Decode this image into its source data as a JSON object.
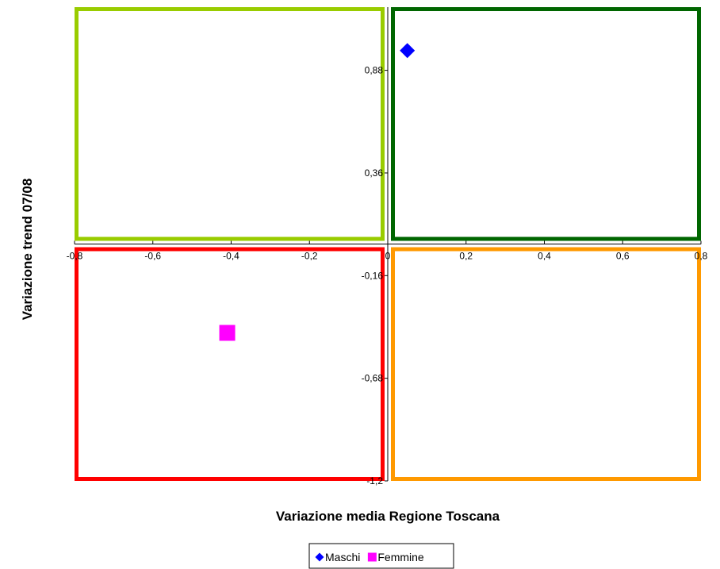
{
  "chart_data": {
    "type": "scatter",
    "xlabel": "Variazione media Regione Toscana",
    "ylabel": "Variazione trend 07/08",
    "xlim": [
      -0.8,
      0.8
    ],
    "ylim": [
      -1.2,
      1.2
    ],
    "x_ticks": [
      "-0,8",
      "-0,6",
      "-0,4",
      "-0,2",
      "0",
      "0,2",
      "0,4",
      "0,6",
      "0,8"
    ],
    "x_tick_values": [
      -0.8,
      -0.6,
      -0.4,
      -0.2,
      0,
      0.2,
      0.4,
      0.6,
      0.8
    ],
    "y_ticks": [
      "0,88",
      "0,36",
      "-0,16",
      "-0,68",
      "-1,2"
    ],
    "y_tick_values": [
      0.88,
      0.36,
      -0.16,
      -0.68,
      -1.2
    ],
    "quadrants": [
      {
        "name": "top-left",
        "color": "#99CC00"
      },
      {
        "name": "top-right",
        "color": "#006600"
      },
      {
        "name": "bottom-left",
        "color": "#FF0000"
      },
      {
        "name": "bottom-right",
        "color": "#FF9900"
      }
    ],
    "series": [
      {
        "name": "Maschi",
        "marker": "diamond",
        "color": "#0000FF",
        "points": [
          {
            "x": 0.05,
            "y": 0.98
          }
        ]
      },
      {
        "name": "Femmine",
        "marker": "square",
        "color": "#FF00FF",
        "points": [
          {
            "x": -0.41,
            "y": -0.45
          }
        ]
      }
    ],
    "legend_position": "bottom",
    "grid": false
  }
}
